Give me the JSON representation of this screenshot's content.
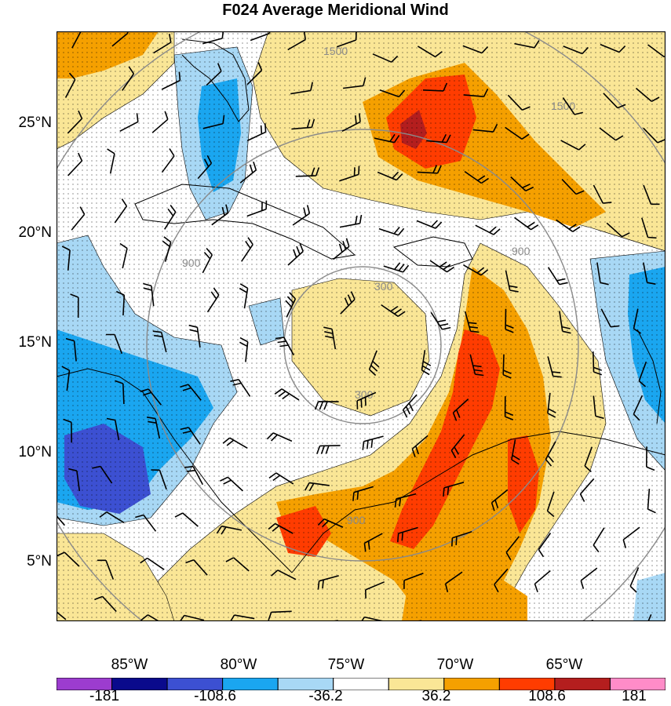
{
  "title": "F024 Average Meridional Wind",
  "lat_labels": [
    "25°N",
    "20°N",
    "15°N",
    "10°N",
    "5°N"
  ],
  "lon_labels": [
    "85°W",
    "80°W",
    "75°W",
    "70°W",
    "65°W"
  ],
  "range_rings": [
    "300",
    "900",
    "1500"
  ],
  "colorbar": {
    "labels": [
      "-181",
      "-108.6",
      "-36.2",
      "36.2",
      "108.6",
      "181"
    ],
    "colors": [
      "#9c3ccf",
      "#0a0a8c",
      "#3c50d2",
      "#1aa6f0",
      "#a8d8f5",
      "#ffffff",
      "#fae696",
      "#f5a000",
      "#ff3c00",
      "#b41e1e",
      "#ff8cc8"
    ]
  },
  "colors": {
    "positive_light": "#fae696",
    "positive_mid": "#f5a000",
    "positive_strong": "#ff3c00",
    "positive_max": "#b41e1e",
    "negative_light": "#a8d8f5",
    "negative_mid": "#1aa6f0",
    "negative_strong": "#3c50d2",
    "ring": "#8a8a8a"
  }
}
